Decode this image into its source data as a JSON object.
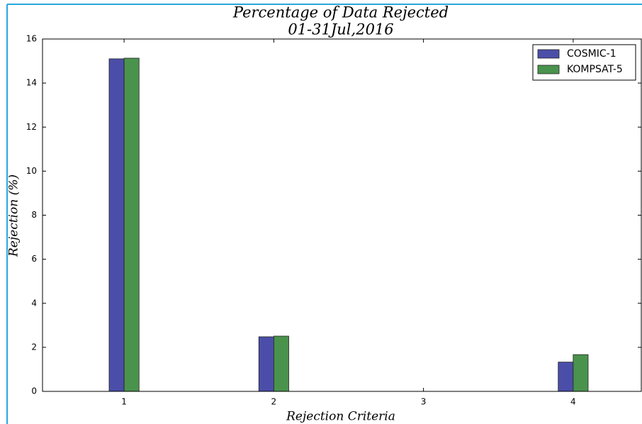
{
  "chart_data": {
    "type": "bar",
    "title": "Percentage of Data Rejected",
    "subtitle": "01-31Jul,2016",
    "x_label": "Rejection Criteria",
    "y_label": "Rejection (%)",
    "x": [
      1,
      2,
      3,
      4
    ],
    "series": [
      {
        "name": "COSMIC-1",
        "color": "#4b4ea8",
        "values": [
          15.1,
          2.48,
          0,
          1.33
        ]
      },
      {
        "name": "KOMPSAT-5",
        "color": "#4a934d",
        "values": [
          15.13,
          2.51,
          0,
          1.67
        ]
      }
    ],
    "bar_width": 0.1,
    "xlim": [
      0.455,
      4.455
    ],
    "xticks": [
      1,
      2,
      3,
      4
    ],
    "ylim": [
      0,
      16
    ],
    "yticks": [
      0,
      2,
      4,
      6,
      8,
      10,
      12,
      14,
      16
    ],
    "legend": "upper right"
  }
}
